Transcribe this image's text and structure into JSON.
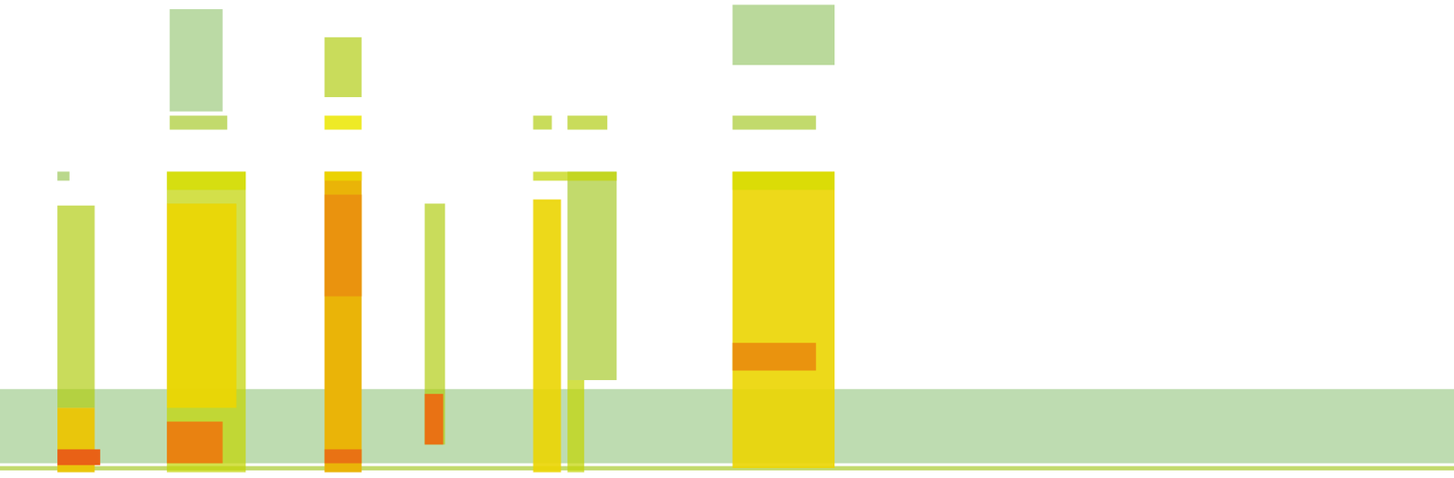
{
  "chart_data": {
    "type": "heatmap",
    "tick_labels": false,
    "xlim": [
      0,
      100
    ],
    "ylim": [
      0,
      100
    ],
    "color_range": [
      0,
      1
    ],
    "cells": [
      {
        "x0": 0,
        "x1": 100,
        "y0": 3.1,
        "y1": 18.6,
        "value": 0.08
      },
      {
        "x0": 0,
        "x1": 100,
        "y0": 1.6,
        "y1": 2.5,
        "value": 0.3
      },
      {
        "x0": 3.95,
        "x1": 6.51,
        "y0": 14.7,
        "y1": 57.0,
        "value": 0.35
      },
      {
        "x0": 3.95,
        "x1": 6.51,
        "y0": 1.2,
        "y1": 14.7,
        "value": 0.6
      },
      {
        "x0": 3.95,
        "x1": 6.89,
        "y0": 2.7,
        "y1": 6.0,
        "value": 0.9
      },
      {
        "x0": 3.95,
        "x1": 4.78,
        "y0": 62.2,
        "y1": 64.1,
        "value": 0.2
      },
      {
        "x0": 11.48,
        "x1": 16.9,
        "y0": 1.2,
        "y1": 64.1,
        "value": 0.4
      },
      {
        "x0": 11.48,
        "x1": 16.26,
        "y0": 14.7,
        "y1": 57.4,
        "value": 0.55
      },
      {
        "x0": 11.48,
        "x1": 15.31,
        "y0": 3.1,
        "y1": 11.8,
        "value": 0.8
      },
      {
        "x0": 11.67,
        "x1": 15.63,
        "y0": 72.9,
        "y1": 75.8,
        "value": 0.3
      },
      {
        "x0": 11.48,
        "x1": 16.9,
        "y0": 60.3,
        "y1": 64.1,
        "value": 0.45
      },
      {
        "x0": 11.67,
        "x1": 15.31,
        "y0": 76.7,
        "y1": 98.1,
        "value": 0.12
      },
      {
        "x0": 22.32,
        "x1": 24.87,
        "y0": 1.2,
        "y1": 64.1,
        "value": 0.65
      },
      {
        "x0": 22.32,
        "x1": 24.87,
        "y0": 38.0,
        "y1": 59.3,
        "value": 0.75
      },
      {
        "x0": 22.32,
        "x1": 24.87,
        "y0": 72.9,
        "y1": 75.8,
        "value": 0.5
      },
      {
        "x0": 22.32,
        "x1": 24.87,
        "y0": 79.7,
        "y1": 92.2,
        "value": 0.35
      },
      {
        "x0": 22.32,
        "x1": 24.87,
        "y0": 62.2,
        "y1": 64.1,
        "value": 0.55
      },
      {
        "x0": 22.32,
        "x1": 24.87,
        "y0": 3.1,
        "y1": 6.0,
        "value": 0.85
      },
      {
        "x0": 29.21,
        "x1": 30.61,
        "y0": 7.0,
        "y1": 57.4,
        "value": 0.35
      },
      {
        "x0": 29.21,
        "x1": 30.48,
        "y0": 7.0,
        "y1": 17.6,
        "value": 0.85
      },
      {
        "x0": 36.67,
        "x1": 38.58,
        "y0": 1.2,
        "y1": 58.3,
        "value": 0.55
      },
      {
        "x0": 39.03,
        "x1": 42.41,
        "y0": 20.5,
        "y1": 64.1,
        "value": 0.3
      },
      {
        "x0": 39.03,
        "x1": 40.18,
        "y0": 1.2,
        "y1": 20.5,
        "value": 0.4
      },
      {
        "x0": 36.67,
        "x1": 37.95,
        "y0": 72.9,
        "y1": 75.8,
        "value": 0.35
      },
      {
        "x0": 39.03,
        "x1": 41.77,
        "y0": 72.9,
        "y1": 75.8,
        "value": 0.35
      },
      {
        "x0": 36.67,
        "x1": 42.41,
        "y0": 62.2,
        "y1": 64.1,
        "value": 0.4
      },
      {
        "x0": 50.38,
        "x1": 57.4,
        "y0": 2.1,
        "y1": 64.1,
        "value": 0.55
      },
      {
        "x0": 50.38,
        "x1": 56.12,
        "y0": 22.5,
        "y1": 28.3,
        "value": 0.75
      },
      {
        "x0": 50.38,
        "x1": 56.12,
        "y0": 72.9,
        "y1": 75.8,
        "value": 0.3
      },
      {
        "x0": 50.38,
        "x1": 57.4,
        "y0": 86.4,
        "y1": 99.0,
        "value": 0.15
      },
      {
        "x0": 50.38,
        "x1": 57.4,
        "y0": 60.3,
        "y1": 64.1,
        "value": 0.45
      }
    ]
  }
}
